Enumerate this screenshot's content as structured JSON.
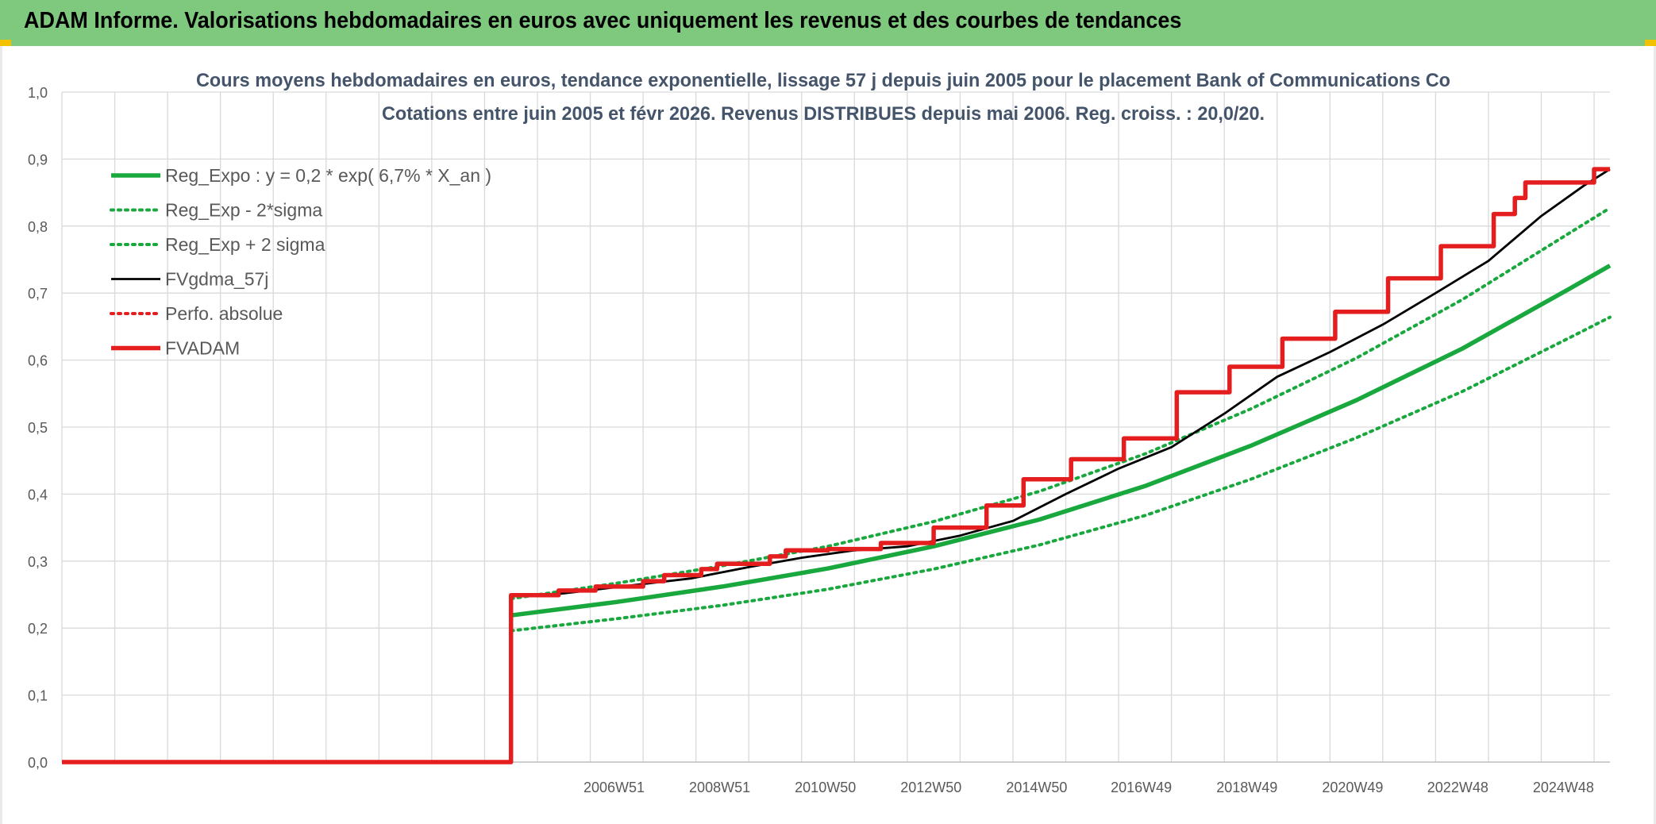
{
  "header": {
    "title": "ADAM Informe. Valorisations hebdomadaires en euros avec uniquement les revenus et des courbes de tendances"
  },
  "colors": {
    "header_bg": "#7fc97f",
    "green": "#19a83e",
    "red": "#e41e1e",
    "black": "#000000",
    "grid": "#d9d9d9",
    "accent": "#f2c200"
  },
  "chart_data": {
    "type": "line",
    "title_line1": "Cours moyens hebdomadaires en euros, tendance exponentielle, lissage 57 j depuis juin 2005 pour le placement Bank of Communications Co",
    "title_line2": "Cotations entre juin 2005 et févr 2026. Revenus DISTRIBUES depuis mai 2006. Reg. croiss. : 20,0/20.",
    "xlabel": "",
    "ylabel": "",
    "ylim": [
      0,
      1.0
    ],
    "yticks": [
      "0,0",
      "0,1",
      "0,2",
      "0,3",
      "0,4",
      "0,5",
      "0,6",
      "0,7",
      "0,8",
      "0,9",
      "1,0"
    ],
    "xlim": [
      1996.5,
      2025.8
    ],
    "xticks": [
      {
        "x": 2006.95,
        "label": "2006W51"
      },
      {
        "x": 2008.95,
        "label": "2008W51"
      },
      {
        "x": 2010.95,
        "label": "2010W50"
      },
      {
        "x": 2012.95,
        "label": "2012W50"
      },
      {
        "x": 2014.95,
        "label": "2014W50"
      },
      {
        "x": 2016.93,
        "label": "2016W49"
      },
      {
        "x": 2018.93,
        "label": "2018W49"
      },
      {
        "x": 2020.93,
        "label": "2020W49"
      },
      {
        "x": 2022.92,
        "label": "2022W48"
      },
      {
        "x": 2024.92,
        "label": "2024W48"
      }
    ],
    "grid": true,
    "legend_position": "top-left",
    "series": [
      {
        "name": "Reg_Expo : y = 0,2 * exp( 6,7% *  X_an )",
        "style": "solid-thick",
        "color": "#19a83e",
        "points": [
          [
            2005.0,
            0.219
          ],
          [
            2007.0,
            0.239
          ],
          [
            2009.0,
            0.262
          ],
          [
            2011.0,
            0.289
          ],
          [
            2013.0,
            0.322
          ],
          [
            2015.0,
            0.362
          ],
          [
            2017.0,
            0.412
          ],
          [
            2019.0,
            0.472
          ],
          [
            2021.0,
            0.54
          ],
          [
            2023.0,
            0.617
          ],
          [
            2025.0,
            0.705
          ],
          [
            2025.8,
            0.741
          ]
        ]
      },
      {
        "name": "Reg_Exp - 2*sigma",
        "style": "dotted",
        "color": "#19a83e",
        "points": [
          [
            2005.0,
            0.196
          ],
          [
            2007.0,
            0.214
          ],
          [
            2009.0,
            0.234
          ],
          [
            2011.0,
            0.258
          ],
          [
            2013.0,
            0.288
          ],
          [
            2015.0,
            0.324
          ],
          [
            2017.0,
            0.368
          ],
          [
            2019.0,
            0.422
          ],
          [
            2021.0,
            0.484
          ],
          [
            2023.0,
            0.553
          ],
          [
            2025.0,
            0.632
          ],
          [
            2025.8,
            0.664
          ]
        ]
      },
      {
        "name": "Reg_Exp + 2 sigma",
        "style": "dotted",
        "color": "#19a83e",
        "points": [
          [
            2005.0,
            0.244
          ],
          [
            2007.0,
            0.267
          ],
          [
            2009.0,
            0.293
          ],
          [
            2011.0,
            0.322
          ],
          [
            2013.0,
            0.359
          ],
          [
            2015.0,
            0.404
          ],
          [
            2017.0,
            0.46
          ],
          [
            2019.0,
            0.527
          ],
          [
            2021.0,
            0.603
          ],
          [
            2023.0,
            0.69
          ],
          [
            2025.0,
            0.788
          ],
          [
            2025.8,
            0.827
          ]
        ]
      },
      {
        "name": "FVgdma_57j",
        "style": "solid",
        "color": "#000000",
        "points": [
          [
            1996.5,
            0.0
          ],
          [
            2005.0,
            0.0
          ],
          [
            2005.0,
            0.25
          ],
          [
            2005.9,
            0.251
          ],
          [
            2007.2,
            0.263
          ],
          [
            2008.4,
            0.274
          ],
          [
            2009.5,
            0.291
          ],
          [
            2010.5,
            0.305
          ],
          [
            2011.5,
            0.316
          ],
          [
            2012.5,
            0.322
          ],
          [
            2013.5,
            0.338
          ],
          [
            2014.5,
            0.36
          ],
          [
            2015.5,
            0.4
          ],
          [
            2016.5,
            0.438
          ],
          [
            2017.5,
            0.47
          ],
          [
            2018.5,
            0.52
          ],
          [
            2019.5,
            0.575
          ],
          [
            2020.5,
            0.612
          ],
          [
            2021.5,
            0.653
          ],
          [
            2022.5,
            0.7
          ],
          [
            2023.5,
            0.748
          ],
          [
            2024.5,
            0.815
          ],
          [
            2025.3,
            0.86
          ],
          [
            2025.8,
            0.885
          ]
        ]
      },
      {
        "name": "Perfo. absolue",
        "style": "dotted",
        "color": "#e41e1e",
        "points": []
      },
      {
        "name": "FVADAM",
        "style": "solid-thick",
        "color": "#e41e1e",
        "points": [
          [
            1996.5,
            0.0
          ],
          [
            2005.0,
            0.0
          ],
          [
            2005.0,
            0.249
          ],
          [
            2005.9,
            0.249
          ],
          [
            2005.9,
            0.256
          ],
          [
            2006.6,
            0.256
          ],
          [
            2006.6,
            0.262
          ],
          [
            2007.5,
            0.262
          ],
          [
            2007.5,
            0.27
          ],
          [
            2007.9,
            0.27
          ],
          [
            2007.9,
            0.279
          ],
          [
            2008.6,
            0.279
          ],
          [
            2008.6,
            0.288
          ],
          [
            2008.9,
            0.288
          ],
          [
            2008.9,
            0.296
          ],
          [
            2009.9,
            0.296
          ],
          [
            2009.9,
            0.307
          ],
          [
            2010.2,
            0.307
          ],
          [
            2010.2,
            0.316
          ],
          [
            2011.0,
            0.316
          ],
          [
            2011.0,
            0.318
          ],
          [
            2012.0,
            0.318
          ],
          [
            2012.0,
            0.327
          ],
          [
            2013.0,
            0.327
          ],
          [
            2013.0,
            0.35
          ],
          [
            2014.0,
            0.35
          ],
          [
            2014.0,
            0.383
          ],
          [
            2014.7,
            0.383
          ],
          [
            2014.7,
            0.422
          ],
          [
            2015.6,
            0.422
          ],
          [
            2015.6,
            0.452
          ],
          [
            2016.6,
            0.452
          ],
          [
            2016.6,
            0.483
          ],
          [
            2017.6,
            0.483
          ],
          [
            2017.6,
            0.552
          ],
          [
            2018.6,
            0.552
          ],
          [
            2018.6,
            0.59
          ],
          [
            2019.6,
            0.59
          ],
          [
            2019.6,
            0.632
          ],
          [
            2020.6,
            0.632
          ],
          [
            2020.6,
            0.672
          ],
          [
            2021.6,
            0.672
          ],
          [
            2021.6,
            0.722
          ],
          [
            2022.6,
            0.722
          ],
          [
            2022.6,
            0.77
          ],
          [
            2023.6,
            0.77
          ],
          [
            2023.6,
            0.818
          ],
          [
            2024.0,
            0.818
          ],
          [
            2024.0,
            0.842
          ],
          [
            2024.2,
            0.842
          ],
          [
            2024.2,
            0.865
          ],
          [
            2025.5,
            0.865
          ],
          [
            2025.5,
            0.885
          ],
          [
            2025.8,
            0.885
          ]
        ]
      }
    ]
  }
}
